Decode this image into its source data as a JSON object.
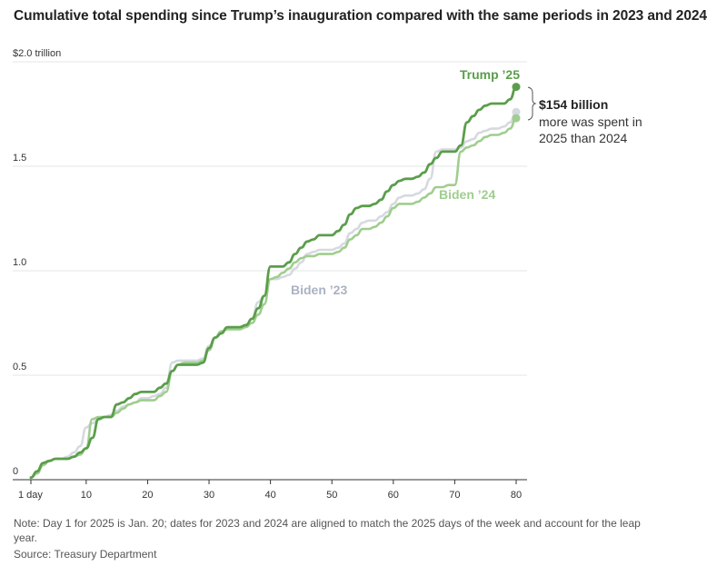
{
  "title": "Cumulative total spending since Trump’s inauguration compared with the same periods in 2023 and 2024",
  "note": "Note: Day 1 for 2025 is Jan. 20; dates for 2023 and 2024 are aligned to match the 2025 days of the week and account for the leap year.",
  "source": "Source: Treasury Department",
  "annotation": {
    "amount": "$154 billion",
    "line1": "more was spent in",
    "line2": "2025 than 2024"
  },
  "colors": {
    "trump25": "#5a9e4b",
    "biden24": "#9fce8e",
    "biden23": "#d6d9e0",
    "biden23_label": "#aab2c2",
    "grid": "#e4e4e4",
    "axis": "#333333"
  },
  "chart_data": {
    "type": "line",
    "title": "Cumulative total spending since Trump’s inauguration compared with the same periods in 2023 and 2024",
    "xlabel": "",
    "ylabel": "",
    "xlim": [
      1,
      80
    ],
    "ylim": [
      0,
      2.0
    ],
    "x_ticks": [
      {
        "value": 1,
        "label": "1 day"
      },
      {
        "value": 10,
        "label": "10"
      },
      {
        "value": 20,
        "label": "20"
      },
      {
        "value": 30,
        "label": "30"
      },
      {
        "value": 40,
        "label": "40"
      },
      {
        "value": 50,
        "label": "50"
      },
      {
        "value": 60,
        "label": "60"
      },
      {
        "value": 70,
        "label": "70"
      },
      {
        "value": 80,
        "label": "80"
      }
    ],
    "y_ticks": [
      {
        "value": 0,
        "label": "0"
      },
      {
        "value": 0.5,
        "label": "0.5"
      },
      {
        "value": 1.0,
        "label": "1.0"
      },
      {
        "value": 1.5,
        "label": "1.5"
      },
      {
        "value": 2.0,
        "label": "$2.0 trillion"
      }
    ],
    "grid": true,
    "series": [
      {
        "name": "Biden ’23",
        "key": "biden23",
        "points": [
          [
            1,
            0.01
          ],
          [
            2,
            0.03
          ],
          [
            3,
            0.07
          ],
          [
            4,
            0.09
          ],
          [
            5,
            0.1
          ],
          [
            6,
            0.1
          ],
          [
            7,
            0.11
          ],
          [
            8,
            0.13
          ],
          [
            9,
            0.16
          ],
          [
            10,
            0.25
          ],
          [
            11,
            0.27
          ],
          [
            12,
            0.29
          ],
          [
            13,
            0.3
          ],
          [
            14,
            0.31
          ],
          [
            15,
            0.33
          ],
          [
            16,
            0.35
          ],
          [
            17,
            0.36
          ],
          [
            18,
            0.37
          ],
          [
            19,
            0.39
          ],
          [
            20,
            0.39
          ],
          [
            21,
            0.4
          ],
          [
            22,
            0.41
          ],
          [
            23,
            0.44
          ],
          [
            24,
            0.56
          ],
          [
            25,
            0.57
          ],
          [
            26,
            0.57
          ],
          [
            27,
            0.57
          ],
          [
            28,
            0.57
          ],
          [
            29,
            0.58
          ],
          [
            30,
            0.64
          ],
          [
            31,
            0.68
          ],
          [
            32,
            0.71
          ],
          [
            33,
            0.72
          ],
          [
            34,
            0.72
          ],
          [
            35,
            0.72
          ],
          [
            36,
            0.74
          ],
          [
            37,
            0.77
          ],
          [
            38,
            0.85
          ],
          [
            39,
            0.88
          ],
          [
            40,
            0.96
          ],
          [
            41,
            0.96
          ],
          [
            42,
            0.97
          ],
          [
            43,
            0.98
          ],
          [
            44,
            1.01
          ],
          [
            45,
            1.04
          ],
          [
            46,
            1.08
          ],
          [
            47,
            1.09
          ],
          [
            48,
            1.1
          ],
          [
            49,
            1.1
          ],
          [
            50,
            1.1
          ],
          [
            51,
            1.11
          ],
          [
            52,
            1.13
          ],
          [
            53,
            1.18
          ],
          [
            54,
            1.2
          ],
          [
            55,
            1.23
          ],
          [
            56,
            1.24
          ],
          [
            57,
            1.24
          ],
          [
            58,
            1.26
          ],
          [
            59,
            1.28
          ],
          [
            60,
            1.32
          ],
          [
            61,
            1.35
          ],
          [
            62,
            1.36
          ],
          [
            63,
            1.36
          ],
          [
            64,
            1.37
          ],
          [
            65,
            1.39
          ],
          [
            66,
            1.44
          ],
          [
            67,
            1.57
          ],
          [
            68,
            1.58
          ],
          [
            69,
            1.58
          ],
          [
            70,
            1.58
          ],
          [
            71,
            1.59
          ],
          [
            72,
            1.62
          ],
          [
            73,
            1.63
          ],
          [
            74,
            1.66
          ],
          [
            75,
            1.67
          ],
          [
            76,
            1.68
          ],
          [
            77,
            1.68
          ],
          [
            78,
            1.69
          ],
          [
            79,
            1.71
          ],
          [
            80,
            1.76
          ]
        ]
      },
      {
        "name": "Biden ’24",
        "key": "biden24",
        "points": [
          [
            1,
            0.01
          ],
          [
            2,
            0.03
          ],
          [
            3,
            0.07
          ],
          [
            4,
            0.09
          ],
          [
            5,
            0.1
          ],
          [
            6,
            0.1
          ],
          [
            7,
            0.1
          ],
          [
            8,
            0.11
          ],
          [
            9,
            0.12
          ],
          [
            10,
            0.15
          ],
          [
            11,
            0.29
          ],
          [
            12,
            0.3
          ],
          [
            13,
            0.3
          ],
          [
            14,
            0.3
          ],
          [
            15,
            0.32
          ],
          [
            16,
            0.34
          ],
          [
            17,
            0.36
          ],
          [
            18,
            0.37
          ],
          [
            19,
            0.38
          ],
          [
            20,
            0.38
          ],
          [
            21,
            0.38
          ],
          [
            22,
            0.4
          ],
          [
            23,
            0.42
          ],
          [
            24,
            0.52
          ],
          [
            25,
            0.55
          ],
          [
            26,
            0.56
          ],
          [
            27,
            0.56
          ],
          [
            28,
            0.56
          ],
          [
            29,
            0.57
          ],
          [
            30,
            0.62
          ],
          [
            31,
            0.68
          ],
          [
            32,
            0.71
          ],
          [
            33,
            0.72
          ],
          [
            34,
            0.72
          ],
          [
            35,
            0.72
          ],
          [
            36,
            0.73
          ],
          [
            37,
            0.75
          ],
          [
            38,
            0.79
          ],
          [
            39,
            0.84
          ],
          [
            40,
            0.96
          ],
          [
            41,
            0.97
          ],
          [
            42,
            0.99
          ],
          [
            43,
            1.01
          ],
          [
            44,
            1.04
          ],
          [
            45,
            1.06
          ],
          [
            46,
            1.07
          ],
          [
            47,
            1.07
          ],
          [
            48,
            1.08
          ],
          [
            49,
            1.08
          ],
          [
            50,
            1.08
          ],
          [
            51,
            1.09
          ],
          [
            52,
            1.11
          ],
          [
            53,
            1.15
          ],
          [
            54,
            1.17
          ],
          [
            55,
            1.2
          ],
          [
            56,
            1.2
          ],
          [
            57,
            1.21
          ],
          [
            58,
            1.23
          ],
          [
            59,
            1.26
          ],
          [
            60,
            1.3
          ],
          [
            61,
            1.32
          ],
          [
            62,
            1.32
          ],
          [
            63,
            1.32
          ],
          [
            64,
            1.33
          ],
          [
            65,
            1.35
          ],
          [
            66,
            1.37
          ],
          [
            67,
            1.4
          ],
          [
            68,
            1.4
          ],
          [
            69,
            1.41
          ],
          [
            70,
            1.41
          ],
          [
            71,
            1.57
          ],
          [
            72,
            1.59
          ],
          [
            73,
            1.6
          ],
          [
            74,
            1.62
          ],
          [
            75,
            1.64
          ],
          [
            76,
            1.65
          ],
          [
            77,
            1.65
          ],
          [
            78,
            1.66
          ],
          [
            79,
            1.68
          ],
          [
            80,
            1.73
          ]
        ]
      },
      {
        "name": "Trump ’25",
        "key": "trump25",
        "points": [
          [
            1,
            0.01
          ],
          [
            2,
            0.04
          ],
          [
            3,
            0.08
          ],
          [
            4,
            0.09
          ],
          [
            5,
            0.1
          ],
          [
            6,
            0.1
          ],
          [
            7,
            0.1
          ],
          [
            8,
            0.11
          ],
          [
            9,
            0.13
          ],
          [
            10,
            0.15
          ],
          [
            11,
            0.2
          ],
          [
            12,
            0.29
          ],
          [
            13,
            0.3
          ],
          [
            14,
            0.3
          ],
          [
            15,
            0.36
          ],
          [
            16,
            0.37
          ],
          [
            17,
            0.39
          ],
          [
            18,
            0.41
          ],
          [
            19,
            0.42
          ],
          [
            20,
            0.42
          ],
          [
            21,
            0.42
          ],
          [
            22,
            0.44
          ],
          [
            23,
            0.46
          ],
          [
            24,
            0.52
          ],
          [
            25,
            0.55
          ],
          [
            26,
            0.55
          ],
          [
            27,
            0.55
          ],
          [
            28,
            0.55
          ],
          [
            29,
            0.56
          ],
          [
            30,
            0.63
          ],
          [
            31,
            0.68
          ],
          [
            32,
            0.7
          ],
          [
            33,
            0.73
          ],
          [
            34,
            0.73
          ],
          [
            35,
            0.73
          ],
          [
            36,
            0.74
          ],
          [
            37,
            0.77
          ],
          [
            38,
            0.82
          ],
          [
            39,
            0.88
          ],
          [
            40,
            1.02
          ],
          [
            41,
            1.02
          ],
          [
            42,
            1.02
          ],
          [
            43,
            1.04
          ],
          [
            44,
            1.08
          ],
          [
            45,
            1.11
          ],
          [
            46,
            1.14
          ],
          [
            47,
            1.15
          ],
          [
            48,
            1.17
          ],
          [
            49,
            1.17
          ],
          [
            50,
            1.17
          ],
          [
            51,
            1.19
          ],
          [
            52,
            1.22
          ],
          [
            53,
            1.27
          ],
          [
            54,
            1.3
          ],
          [
            55,
            1.31
          ],
          [
            56,
            1.31
          ],
          [
            57,
            1.32
          ],
          [
            58,
            1.34
          ],
          [
            59,
            1.38
          ],
          [
            60,
            1.41
          ],
          [
            61,
            1.43
          ],
          [
            62,
            1.44
          ],
          [
            63,
            1.44
          ],
          [
            64,
            1.45
          ],
          [
            65,
            1.47
          ],
          [
            66,
            1.51
          ],
          [
            67,
            1.54
          ],
          [
            68,
            1.57
          ],
          [
            69,
            1.57
          ],
          [
            70,
            1.57
          ],
          [
            71,
            1.6
          ],
          [
            72,
            1.71
          ],
          [
            73,
            1.74
          ],
          [
            74,
            1.77
          ],
          [
            75,
            1.79
          ],
          [
            76,
            1.8
          ],
          [
            77,
            1.8
          ],
          [
            78,
            1.8
          ],
          [
            79,
            1.82
          ],
          [
            80,
            1.88
          ]
        ]
      }
    ],
    "labels": {
      "biden23": "Biden ’23",
      "biden24": "Biden ’24",
      "trump25": "Trump ’25"
    }
  }
}
